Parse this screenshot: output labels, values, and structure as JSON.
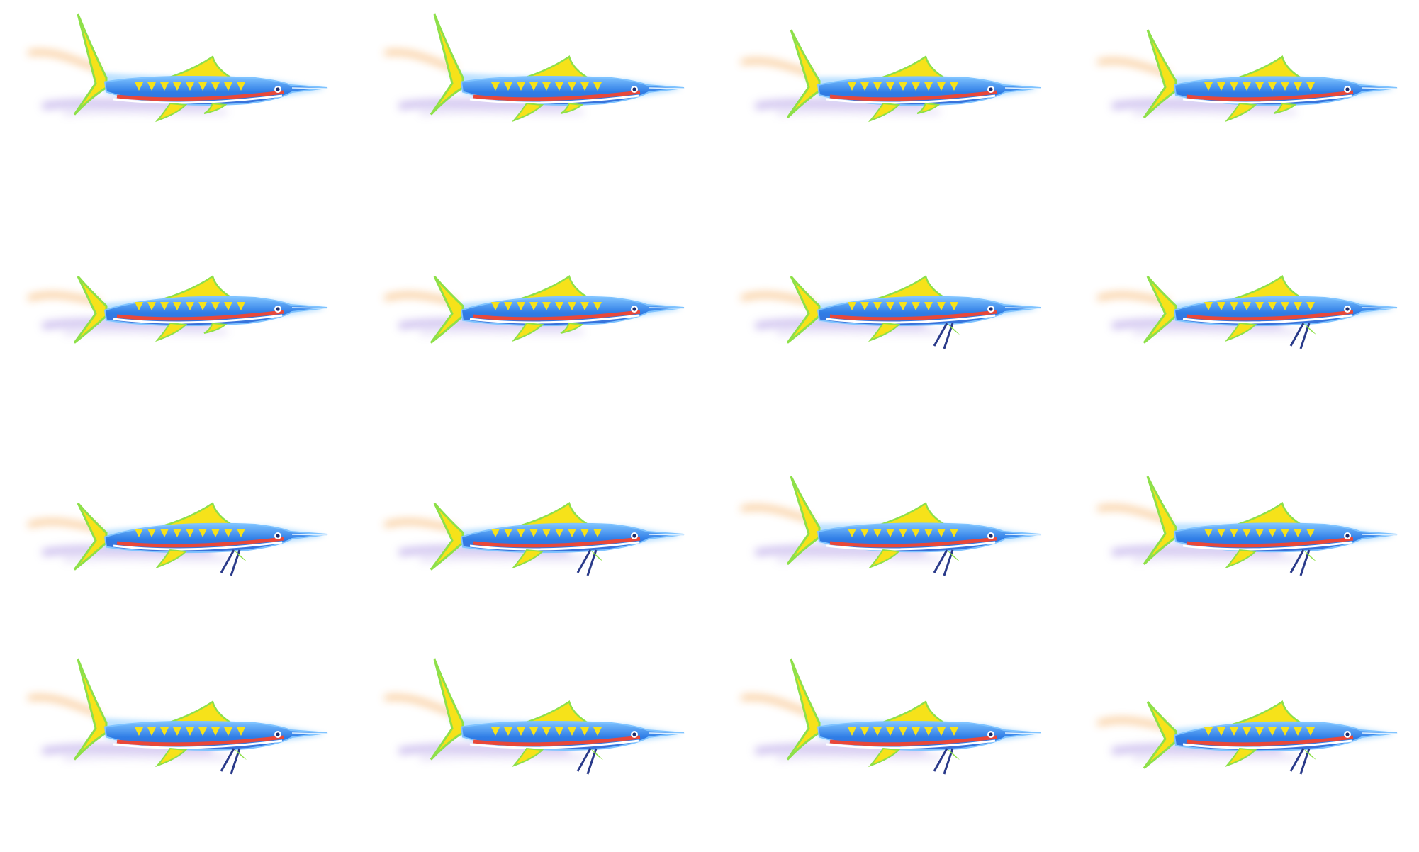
{
  "sprite_sheet": {
    "subject": "swordfish-icon",
    "rows": 4,
    "columns": 4,
    "frame_count": 16,
    "background_color": "#ffffff",
    "colors": {
      "body_blue": "#2f7de6",
      "body_light": "#7fc3ff",
      "glow": "#9fd4ff",
      "fin_yellow": "#f6e21a",
      "fin_green": "#8ee04a",
      "stripe_red": "#e8483a",
      "stripe_white": "#ffffff",
      "trail_orange": "#f5a24a",
      "trail_violet": "#b9a6e8",
      "eye": "#1a2a6a"
    },
    "frames": [
      {
        "tail": "high",
        "pectoral_legs": false
      },
      {
        "tail": "high",
        "pectoral_legs": false
      },
      {
        "tail": "mid",
        "pectoral_legs": false
      },
      {
        "tail": "mid",
        "pectoral_legs": false
      },
      {
        "tail": "low",
        "pectoral_legs": false
      },
      {
        "tail": "low",
        "pectoral_legs": false
      },
      {
        "tail": "low",
        "pectoral_legs": true
      },
      {
        "tail": "low",
        "pectoral_legs": true
      },
      {
        "tail": "low",
        "pectoral_legs": true
      },
      {
        "tail": "low",
        "pectoral_legs": true
      },
      {
        "tail": "mid",
        "pectoral_legs": true
      },
      {
        "tail": "mid",
        "pectoral_legs": true
      },
      {
        "tail": "high",
        "pectoral_legs": true
      },
      {
        "tail": "high",
        "pectoral_legs": true
      },
      {
        "tail": "high",
        "pectoral_legs": true
      },
      {
        "tail": "low",
        "pectoral_legs": true
      }
    ]
  }
}
